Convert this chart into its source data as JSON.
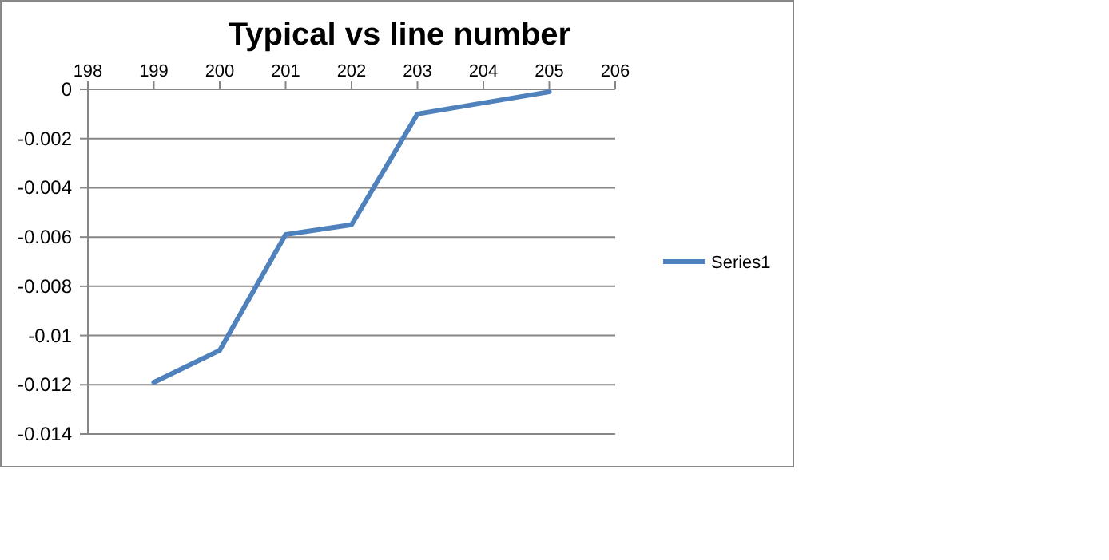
{
  "chart_data": {
    "type": "line",
    "title": "Typical vs line number",
    "x": [
      199,
      200,
      201,
      202,
      203,
      205
    ],
    "series": [
      {
        "name": "Series1",
        "color": "#4f81bd",
        "values": [
          -0.0119,
          -0.0106,
          -0.0059,
          -0.0055,
          -0.001,
          -0.0001
        ]
      }
    ],
    "xlim": [
      198,
      206
    ],
    "xticks": [
      198,
      199,
      200,
      201,
      202,
      203,
      204,
      205,
      206
    ],
    "ylim": [
      -0.014,
      0
    ],
    "yticks": [
      0,
      -0.002,
      -0.004,
      -0.006,
      -0.008,
      -0.01,
      -0.012,
      -0.014
    ],
    "grid": "y",
    "legend": "right",
    "marker": "none",
    "line_style": "solid"
  }
}
